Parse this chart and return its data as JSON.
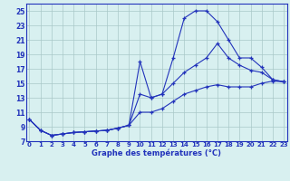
{
  "title": "Graphe des températures (°C)",
  "x": [
    0,
    1,
    2,
    3,
    4,
    5,
    6,
    7,
    8,
    9,
    10,
    11,
    12,
    13,
    14,
    15,
    16,
    17,
    18,
    19,
    20,
    21,
    22,
    23
  ],
  "curve1": [
    10.0,
    8.5,
    7.8,
    8.0,
    8.2,
    8.3,
    8.4,
    8.5,
    8.8,
    9.2,
    18.0,
    13.0,
    13.5,
    18.5,
    24.0,
    25.0,
    25.0,
    23.5,
    21.0,
    18.5,
    18.5,
    17.2,
    15.5,
    15.2
  ],
  "curve2": [
    10.0,
    8.5,
    7.8,
    8.0,
    8.2,
    8.3,
    8.4,
    8.5,
    8.8,
    9.2,
    13.5,
    13.0,
    13.5,
    15.0,
    16.5,
    17.5,
    18.5,
    20.5,
    18.5,
    17.5,
    16.8,
    16.5,
    15.5,
    15.2
  ],
  "curve3": [
    10.0,
    8.5,
    7.8,
    8.0,
    8.2,
    8.3,
    8.4,
    8.5,
    8.8,
    9.2,
    11.0,
    11.0,
    11.5,
    12.5,
    13.5,
    14.0,
    14.5,
    14.8,
    14.5,
    14.5,
    14.5,
    15.0,
    15.3,
    15.2
  ],
  "line_color": "#2233bb",
  "bg_color": "#d8f0f0",
  "grid_color": "#aac8c8",
  "ylim": [
    7,
    26
  ],
  "yticks": [
    7,
    9,
    11,
    13,
    15,
    17,
    19,
    21,
    23,
    25
  ],
  "xlim": [
    -0.3,
    23.3
  ],
  "marker": "+",
  "marker_size": 3.5,
  "lw": 0.8
}
